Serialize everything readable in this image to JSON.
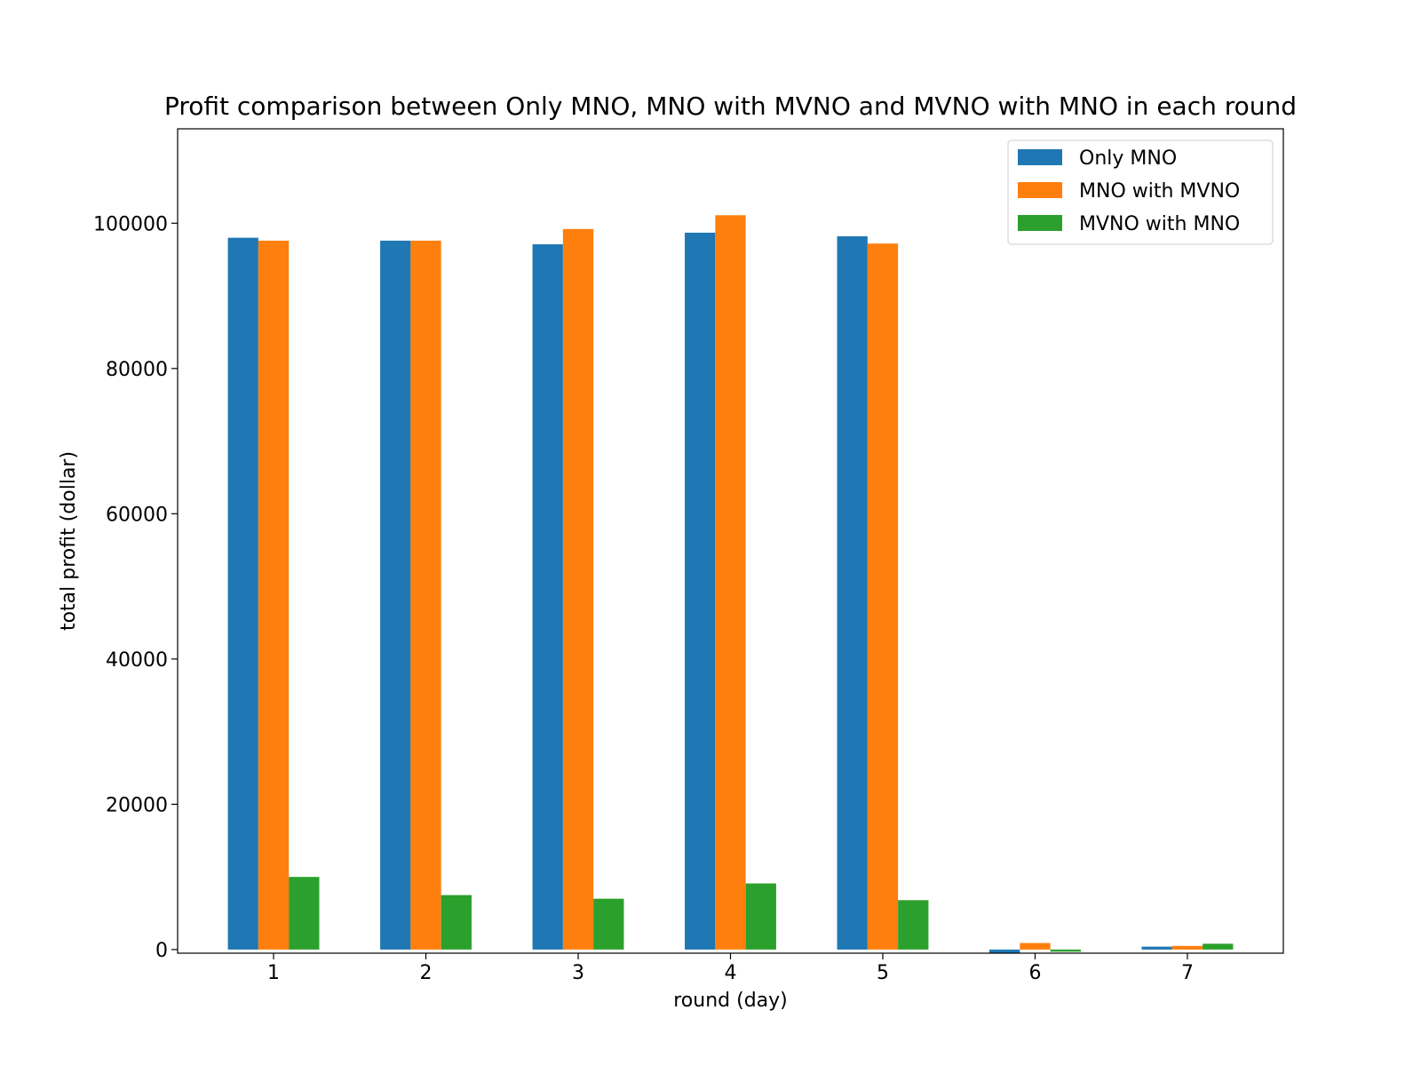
{
  "chart_data": {
    "type": "bar",
    "title": "Profit comparison between Only MNO, MNO with MVNO and MVNO with MNO in each round",
    "xlabel": "round (day)",
    "ylabel": "total profit (dollar)",
    "categories": [
      "1",
      "2",
      "3",
      "4",
      "5",
      "6",
      "7"
    ],
    "series": [
      {
        "name": "Only MNO",
        "color": "#1f77b4",
        "values": [
          98000,
          97600,
          97100,
          98700,
          98200,
          -500,
          400
        ]
      },
      {
        "name": "MNO with MVNO",
        "color": "#ff7f0e",
        "values": [
          97600,
          97600,
          99200,
          101100,
          97200,
          900,
          500
        ]
      },
      {
        "name": "MVNO with MNO",
        "color": "#2ca02c",
        "values": [
          10000,
          7500,
          7000,
          9100,
          6800,
          -300,
          800
        ]
      }
    ],
    "ylim": [
      -500,
      113000
    ],
    "yticks": [
      0,
      20000,
      40000,
      60000,
      80000,
      100000
    ],
    "grid": false,
    "legend_position": "top-right"
  }
}
